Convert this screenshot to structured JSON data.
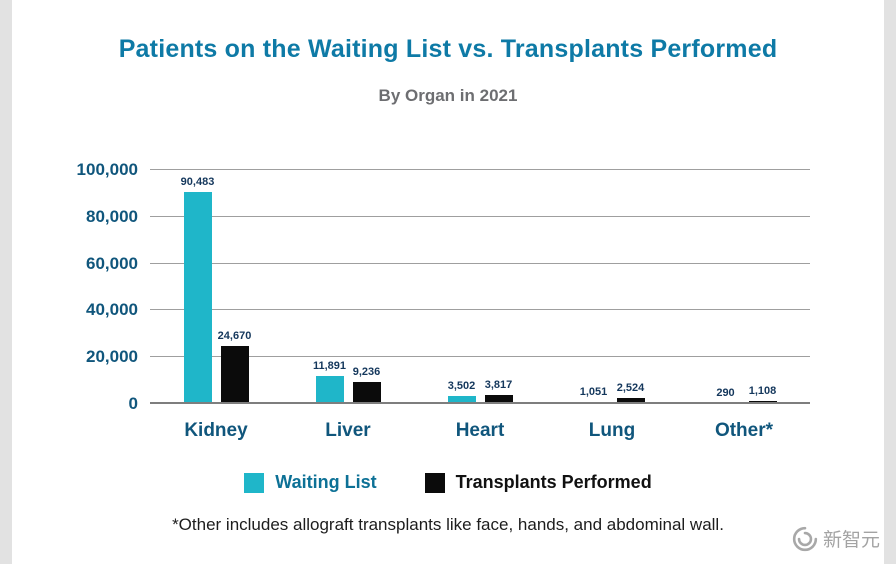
{
  "title": "Patients on the Waiting List vs. Transplants Performed",
  "subtitle": "By Organ in 2021",
  "chart_data": {
    "type": "bar",
    "categories": [
      "Kidney",
      "Liver",
      "Heart",
      "Lung",
      "Other*"
    ],
    "series": [
      {
        "name": "Waiting List",
        "color": "#1fb6c9",
        "label_color": "#0d7196",
        "values": [
          90483,
          11891,
          3502,
          1051,
          290
        ],
        "labels": [
          "90,483",
          "11,891",
          "3,502",
          "1,051",
          "290"
        ]
      },
      {
        "name": "Transplants Performed",
        "color": "#0b0b0b",
        "label_color": "#111111",
        "values": [
          24670,
          9236,
          3817,
          2524,
          1108
        ],
        "labels": [
          "24,670",
          "9,236",
          "3,817",
          "2,524",
          "1,108"
        ]
      }
    ],
    "ylim": [
      0,
      100000
    ],
    "yticks": [
      0,
      20000,
      40000,
      60000,
      80000,
      100000
    ],
    "ytick_labels": [
      "0",
      "20,000",
      "40,000",
      "60,000",
      "80,000",
      "100,000"
    ],
    "grid": true,
    "legend_position": "bottom",
    "xlabel": "",
    "ylabel": ""
  },
  "footnote": "*Other includes allograft transplants like face, hands, and abdominal wall.",
  "watermark": "新智元",
  "colors": {
    "title": "#0e7aa6",
    "subtitle": "#6d6e71",
    "axis_text": "#10567c",
    "bar_teal": "#1fb6c9",
    "bar_black": "#0b0b0b",
    "grid": "#9f9f9f"
  }
}
